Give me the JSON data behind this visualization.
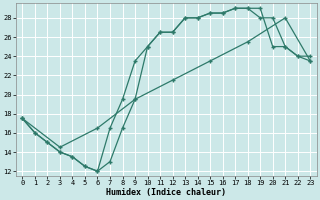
{
  "xlabel": "Humidex (Indice chaleur)",
  "bg_color": "#cce8e8",
  "grid_color": "#ffffff",
  "line_color": "#2e7a6a",
  "xlim": [
    -0.5,
    23.5
  ],
  "ylim": [
    11.5,
    29.5
  ],
  "xticks": [
    0,
    1,
    2,
    3,
    4,
    5,
    6,
    7,
    8,
    9,
    10,
    11,
    12,
    13,
    14,
    15,
    16,
    17,
    18,
    19,
    20,
    21,
    22,
    23
  ],
  "yticks": [
    12,
    14,
    16,
    18,
    20,
    22,
    24,
    26,
    28
  ],
  "line1_x": [
    0,
    1,
    2,
    3,
    4,
    5,
    6,
    7,
    8,
    9,
    10,
    11,
    12,
    13,
    14,
    15,
    16,
    17,
    18,
    19,
    20,
    21,
    22,
    23
  ],
  "line1_y": [
    17.5,
    16,
    15,
    14,
    13.5,
    12.5,
    12,
    13,
    16.5,
    19.5,
    25.0,
    26.5,
    26.5,
    28,
    28,
    28.5,
    28.5,
    29,
    29.0,
    29.0,
    25,
    25,
    24,
    23.5
  ],
  "line2_x": [
    0,
    1,
    2,
    3,
    4,
    5,
    6,
    7,
    8,
    9,
    10,
    11,
    12,
    13,
    14,
    15,
    16,
    17,
    18,
    19,
    20,
    21,
    22,
    23
  ],
  "line2_y": [
    17.5,
    16,
    15,
    14,
    13.5,
    12.5,
    12,
    16.5,
    19.5,
    23.5,
    25.0,
    26.5,
    26.5,
    28,
    28,
    28.5,
    28.5,
    29,
    29.0,
    28.0,
    28.0,
    25,
    24,
    24
  ],
  "line3_x": [
    0,
    3,
    6,
    9,
    12,
    15,
    18,
    21,
    23
  ],
  "line3_y": [
    17.5,
    14.5,
    16.5,
    19.5,
    21.5,
    23.5,
    25.5,
    28.0,
    23.5
  ]
}
